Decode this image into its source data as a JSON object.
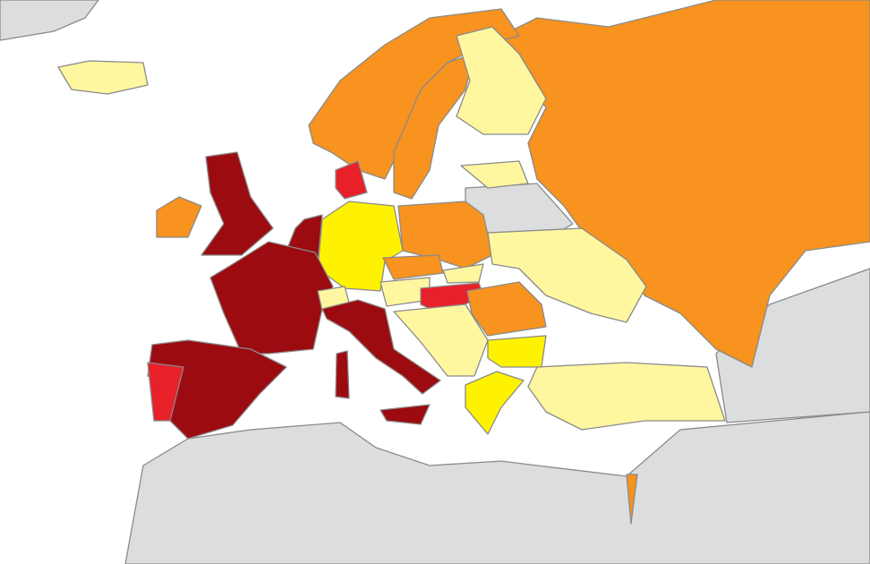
{
  "map": {
    "sea": "#ffffff",
    "other_land": "#dcdddf",
    "border": "#8a8a8a",
    "classes": [
      "#9b0b10",
      "#e8202a",
      "#f7931e",
      "#fff200",
      "#fff7a0"
    ]
  }
}
